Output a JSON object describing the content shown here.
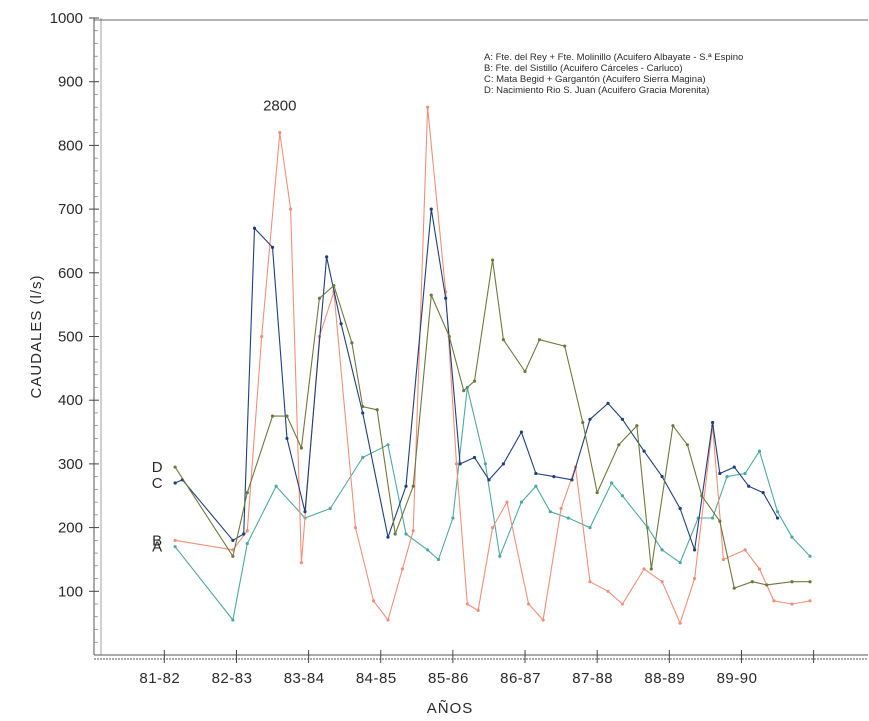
{
  "chart_data": {
    "type": "line",
    "ylabel": "CAUDALES   (l/s)",
    "xlabel": "AÑOS",
    "ylim": [
      0,
      1000
    ],
    "yticks": [
      "100",
      "200",
      "300",
      "400",
      "500",
      "600",
      "700",
      "800",
      "900",
      "1000"
    ],
    "xlim": [
      0,
      9.8
    ],
    "categories": [
      "81-82",
      "82-83",
      "83-84",
      "84-85",
      "85-86",
      "86-87",
      "87-88",
      "88-89",
      "89-90"
    ],
    "annotation": "2800",
    "legend_position": "top-right",
    "legend": [
      "A: Fte. del Rey + Fte. Molinillo (Acuifero Albayate - S.ª Espino",
      "B: Fte. del Sistillo (Acuifero Cárceles - Carluco)",
      "C: Mata Begid + Gargantón (Acuifero Sierra Magina)",
      "D: Nacimiento Rio S. Juan (Acuifero Gracia Morenita)"
    ],
    "series": [
      {
        "letter": "A",
        "color": "#4fa8a0",
        "x": [
          1.0,
          1.8,
          2.0,
          2.4,
          2.8,
          3.15,
          3.6,
          3.95,
          4.2,
          4.5,
          4.65,
          4.85,
          5.05,
          5.3,
          5.5,
          5.8,
          6.0,
          6.2,
          6.45,
          6.75,
          7.05,
          7.2,
          7.55,
          7.75,
          8.0,
          8.25,
          8.45,
          8.65,
          8.9,
          9.1,
          9.35,
          9.55,
          9.8
        ],
        "y": [
          170,
          55,
          175,
          265,
          215,
          230,
          310,
          330,
          190,
          165,
          150,
          215,
          420,
          300,
          155,
          240,
          265,
          225,
          215,
          200,
          270,
          250,
          200,
          165,
          145,
          215,
          215,
          280,
          285,
          320,
          225,
          185,
          155
        ]
      },
      {
        "letter": "B",
        "color": "#f0907a",
        "x": [
          1.0,
          1.8,
          2.0,
          2.2,
          2.45,
          2.6,
          2.75,
          3.0,
          3.2,
          3.5,
          3.75,
          3.95,
          4.15,
          4.3,
          4.5,
          4.75,
          4.9,
          5.05,
          5.2,
          5.4,
          5.6,
          5.9,
          6.1,
          6.35,
          6.55,
          6.75,
          7.0,
          7.2,
          7.5,
          7.75,
          8.0,
          8.2,
          8.45,
          8.6,
          8.9,
          9.1,
          9.3,
          9.55,
          9.8
        ],
        "y": [
          180,
          165,
          195,
          500,
          820,
          700,
          145,
          500,
          570,
          200,
          85,
          55,
          135,
          195,
          860,
          570,
          300,
          80,
          70,
          200,
          240,
          80,
          55,
          230,
          295,
          115,
          100,
          80,
          135,
          115,
          50,
          120,
          360,
          150,
          165,
          135,
          85,
          80,
          85
        ]
      },
      {
        "letter": "C",
        "color": "#1f3f7a",
        "x": [
          1.0,
          1.1,
          1.8,
          1.95,
          2.1,
          2.35,
          2.55,
          2.8,
          3.1,
          3.3,
          3.6,
          3.95,
          4.2,
          4.55,
          4.75,
          4.95,
          5.15,
          5.35,
          5.55,
          5.8,
          6.0,
          6.25,
          6.5,
          6.75,
          7.0,
          7.2,
          7.5,
          7.75,
          8.0,
          8.2,
          8.45,
          8.55,
          8.75,
          8.95,
          9.15,
          9.35
        ],
        "y": [
          270,
          275,
          180,
          190,
          670,
          640,
          340,
          225,
          625,
          520,
          380,
          185,
          265,
          700,
          560,
          300,
          310,
          275,
          300,
          350,
          285,
          280,
          275,
          370,
          395,
          370,
          320,
          280,
          230,
          165,
          365,
          285,
          295,
          265,
          255,
          215
        ]
      },
      {
        "letter": "D",
        "color": "#6b7a3c",
        "x": [
          1.0,
          1.8,
          2.0,
          2.35,
          2.55,
          2.75,
          3.0,
          3.2,
          3.45,
          3.6,
          3.8,
          4.05,
          4.3,
          4.55,
          4.8,
          5.0,
          5.15,
          5.4,
          5.55,
          5.85,
          6.05,
          6.4,
          6.65,
          6.85,
          7.15,
          7.4,
          7.6,
          7.9,
          8.1,
          8.3,
          8.55,
          8.75,
          9.0,
          9.2,
          9.55,
          9.8
        ],
        "y": [
          295,
          155,
          255,
          375,
          375,
          325,
          560,
          580,
          490,
          390,
          385,
          190,
          265,
          565,
          500,
          415,
          430,
          620,
          495,
          445,
          495,
          485,
          365,
          255,
          330,
          360,
          135,
          360,
          330,
          250,
          210,
          105,
          115,
          110,
          115,
          115
        ]
      }
    ]
  }
}
